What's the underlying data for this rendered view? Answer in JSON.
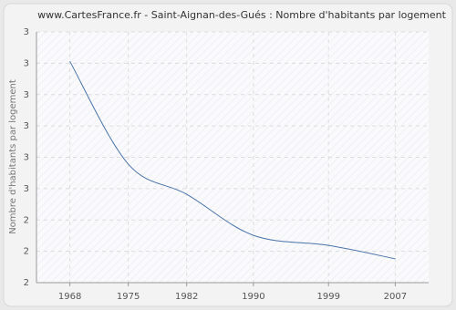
{
  "chart_data": {
    "type": "line",
    "title": "www.CartesFrance.fr - Saint-Aignan-des-Gués : Nombre d'habitants par logement",
    "y_label": "Nombre d'habitants par logement",
    "x": [
      1968,
      1975,
      1982,
      1990,
      1999,
      2007
    ],
    "series": [
      {
        "name": "Nombre d'habitants par logement",
        "color": "#4a74a8",
        "values": [
          2.906,
          2.578,
          2.482,
          2.351,
          2.319,
          2.276
        ]
      }
    ],
    "xlim": [
      1964,
      2011
    ],
    "xticks": [
      1968,
      1975,
      1982,
      1990,
      1999,
      2007
    ],
    "ylim": [
      2.2,
      3.0
    ],
    "yticks": [
      {
        "value": 2.2,
        "label": "2"
      },
      {
        "value": 2.3,
        "label": "2"
      },
      {
        "value": 2.4,
        "label": "2"
      },
      {
        "value": 2.5,
        "label": "3"
      },
      {
        "value": 2.6,
        "label": "3"
      },
      {
        "value": 2.7,
        "label": "3"
      },
      {
        "value": 2.8,
        "label": "3"
      },
      {
        "value": 2.9,
        "label": "3"
      },
      {
        "value": 3.0,
        "label": "3"
      }
    ],
    "grid": true
  }
}
